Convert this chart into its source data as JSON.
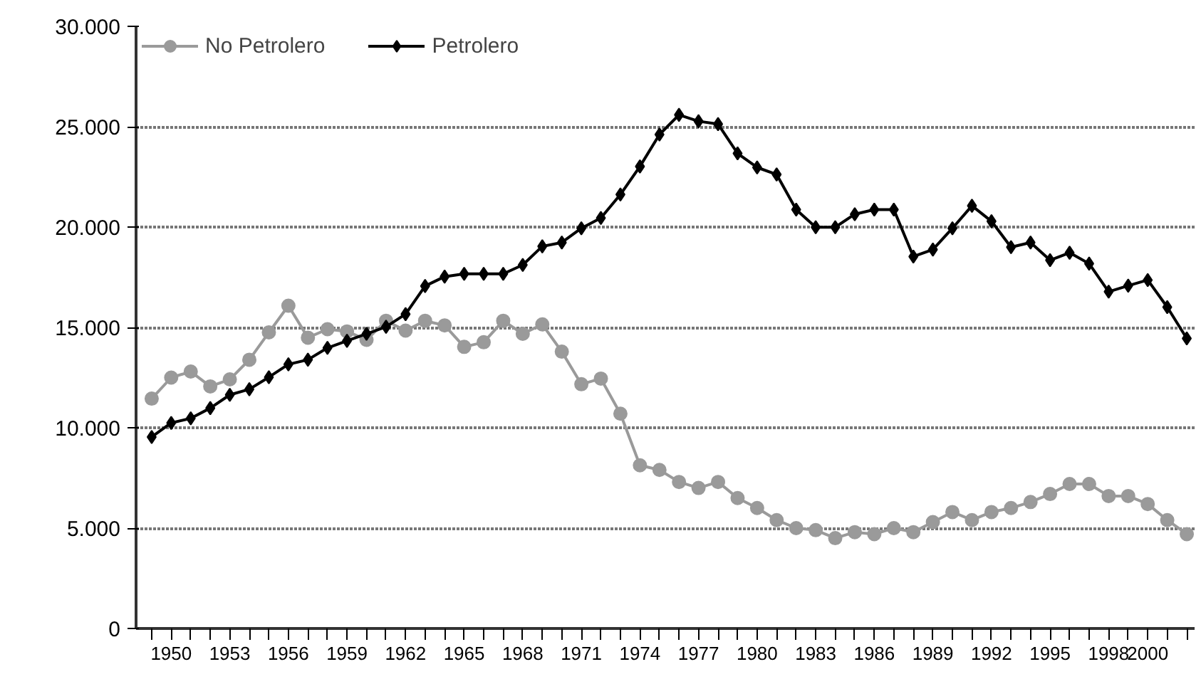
{
  "chart_data": {
    "type": "line",
    "categories": [
      null,
      "1950",
      null,
      null,
      "1953",
      null,
      null,
      "1956",
      null,
      null,
      "1959",
      null,
      null,
      "1962",
      null,
      null,
      "1965",
      null,
      null,
      "1968",
      null,
      null,
      "1971",
      null,
      null,
      "1974",
      null,
      null,
      "1977",
      null,
      null,
      "1980",
      null,
      null,
      "1983",
      null,
      null,
      "1986",
      null,
      null,
      "1989",
      null,
      null,
      "1992",
      null,
      null,
      "1995",
      null,
      null,
      "1998",
      null,
      "2000",
      null,
      null
    ],
    "series": [
      {
        "name": "No Petrolero",
        "color": "#9a9a9a",
        "marker": "circle",
        "values": [
          11450,
          12500,
          12800,
          12060,
          12410,
          13390,
          14750,
          16080,
          14490,
          14910,
          14800,
          14380,
          15330,
          14840,
          15330,
          15100,
          14030,
          14260,
          15330,
          14680,
          15150,
          13790,
          12170,
          12450,
          10700,
          8130,
          7900,
          7300,
          7000,
          7300,
          6500,
          6000,
          5400,
          5000,
          4900,
          4500,
          4800,
          4700,
          5000,
          4800,
          5300,
          5800,
          5400,
          5800,
          6000,
          6300,
          6700,
          7200,
          7200,
          6600,
          6600,
          6200,
          5400,
          4700
        ]
      },
      {
        "name": "Petrolero",
        "color": "#000000",
        "marker": "diamond",
        "values": [
          9540,
          10240,
          10470,
          10980,
          11640,
          11920,
          12520,
          13160,
          13390,
          13980,
          14330,
          14680,
          15030,
          15660,
          17060,
          17530,
          17670,
          17670,
          17670,
          18110,
          19040,
          19230,
          19940,
          20450,
          21620,
          23020,
          24610,
          25590,
          25270,
          25130,
          23670,
          22970,
          22620,
          20870,
          19990,
          19990,
          20640,
          20870,
          20870,
          18530,
          18880,
          19940,
          21060,
          20290,
          19000,
          19230,
          18350,
          18720,
          18180,
          16780,
          17080,
          17360,
          16010,
          14450
        ]
      }
    ],
    "ylim": [
      0,
      30000
    ],
    "yticks": [
      {
        "value": 0,
        "label": "0"
      },
      {
        "value": 5000,
        "label": "5.000"
      },
      {
        "value": 10000,
        "label": "10.000"
      },
      {
        "value": 15000,
        "label": "15.000"
      },
      {
        "value": 20000,
        "label": "20.000"
      },
      {
        "value": 25000,
        "label": "25.000"
      },
      {
        "value": 30000,
        "label": "30.000"
      }
    ],
    "grid": "y",
    "legend": "top left",
    "line_style": "solid"
  }
}
